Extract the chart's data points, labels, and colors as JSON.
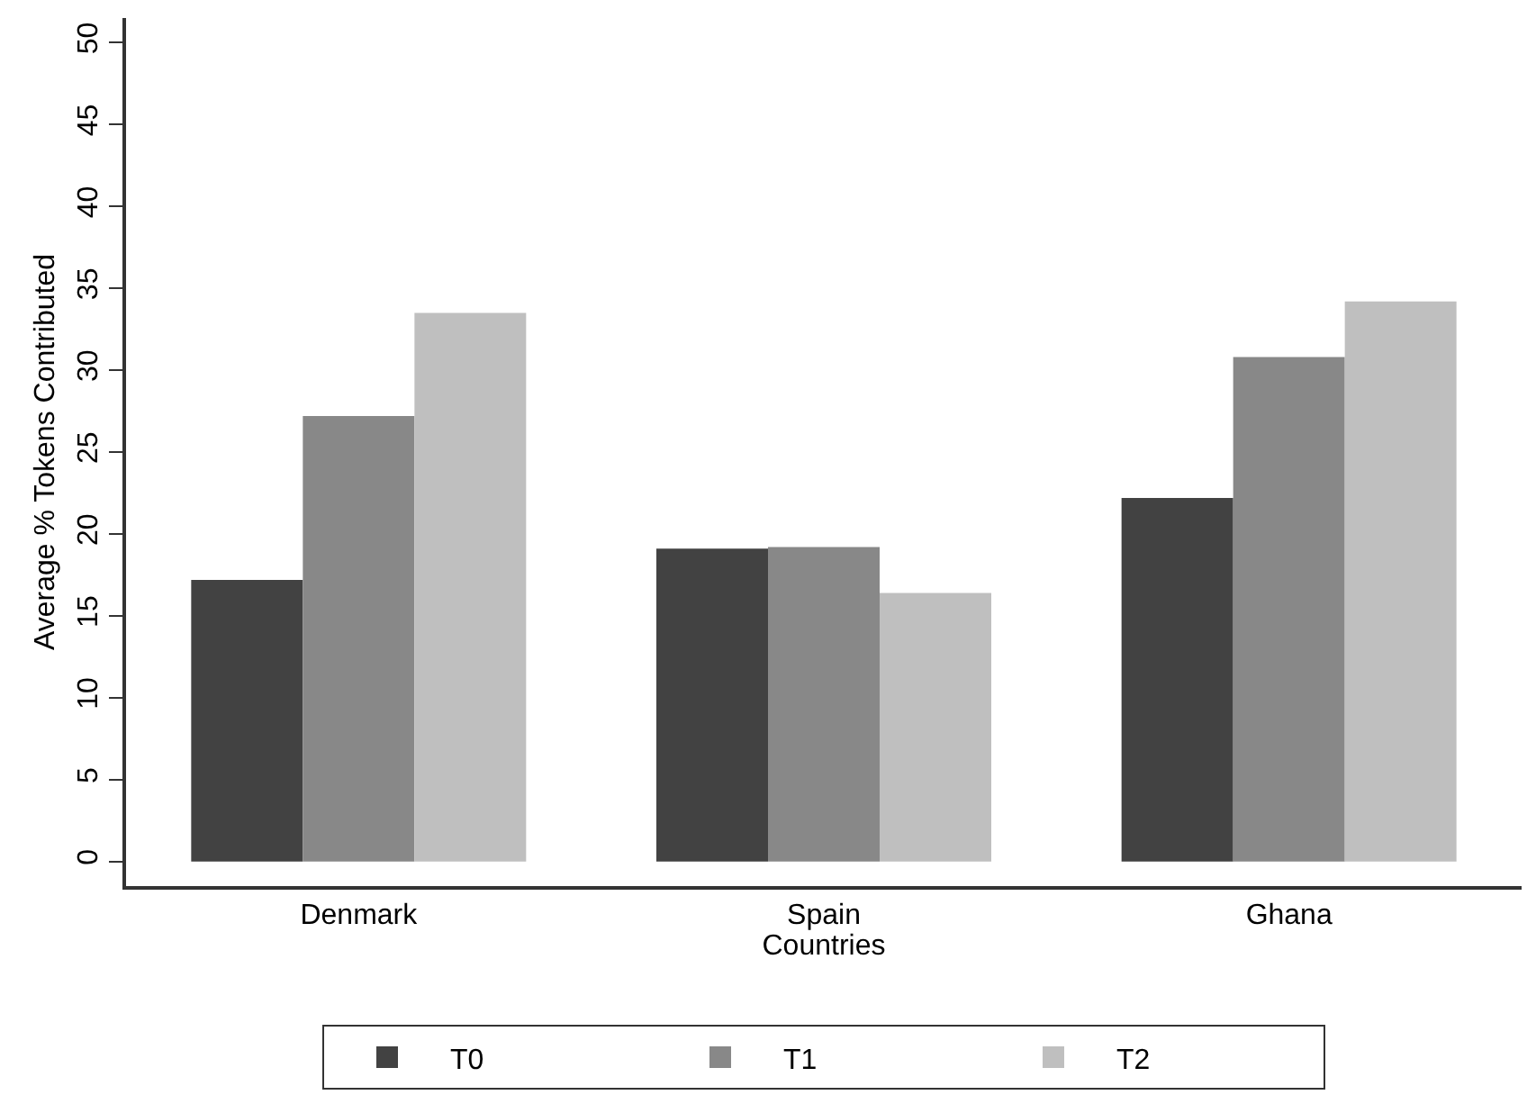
{
  "chart_data": {
    "type": "bar",
    "xlabel": "Countries",
    "ylabel": "Average % Tokens Contributed",
    "categories": [
      "Denmark",
      "Spain",
      "Ghana"
    ],
    "series": [
      {
        "name": "T0",
        "color": "#424242",
        "values": [
          17.2,
          19.1,
          22.2
        ]
      },
      {
        "name": "T1",
        "color": "#888888",
        "values": [
          27.2,
          19.2,
          30.8
        ]
      },
      {
        "name": "T2",
        "color": "#bfbfbf",
        "values": [
          33.5,
          16.4,
          34.2
        ]
      }
    ],
    "ylim": [
      -1.5,
      51.5
    ],
    "yticks": [
      0,
      5,
      10,
      15,
      20,
      25,
      30,
      35,
      40,
      45,
      50
    ],
    "grid": false,
    "legend": "bottom"
  }
}
